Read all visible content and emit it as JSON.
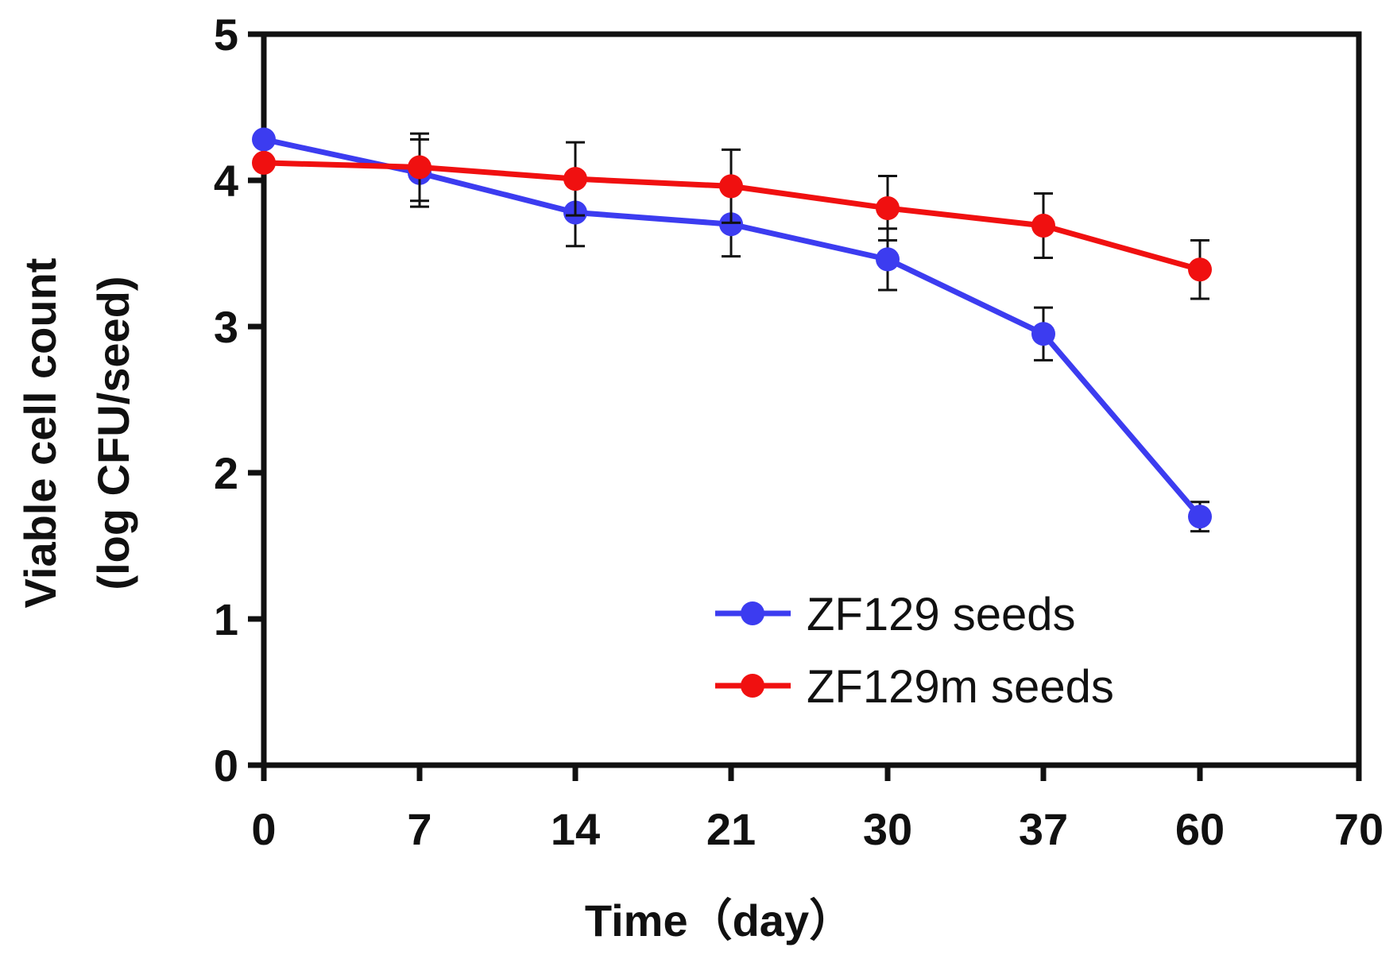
{
  "chart_data": {
    "type": "line",
    "xlabel": "Time（day）",
    "ylabel_lines": [
      "Viable cell count",
      "(log CFU/seed)"
    ],
    "ylim": [
      0,
      5
    ],
    "yticks": [
      "0",
      "1",
      "2",
      "3",
      "4",
      "5"
    ],
    "xtick_labels": [
      "0",
      "7",
      "14",
      "21",
      "30",
      "37",
      "60",
      "70"
    ],
    "x": [
      "0",
      "7",
      "14",
      "21",
      "30",
      "37",
      "60"
    ],
    "legend_position": "bottom-right",
    "grid": false,
    "series": [
      {
        "name": "ZF129 seeds",
        "color": "#3c3cf0",
        "values": [
          4.28,
          4.05,
          3.78,
          3.7,
          3.46,
          2.95,
          1.7
        ],
        "errors": [
          0.0,
          0.23,
          0.23,
          0.22,
          0.21,
          0.18,
          0.1
        ]
      },
      {
        "name": "ZF129m seeds",
        "color": "#f01010",
        "values": [
          4.12,
          4.09,
          4.01,
          3.96,
          3.81,
          3.69,
          3.39
        ],
        "errors": [
          0.0,
          0.23,
          0.25,
          0.25,
          0.22,
          0.22,
          0.2
        ]
      }
    ]
  }
}
